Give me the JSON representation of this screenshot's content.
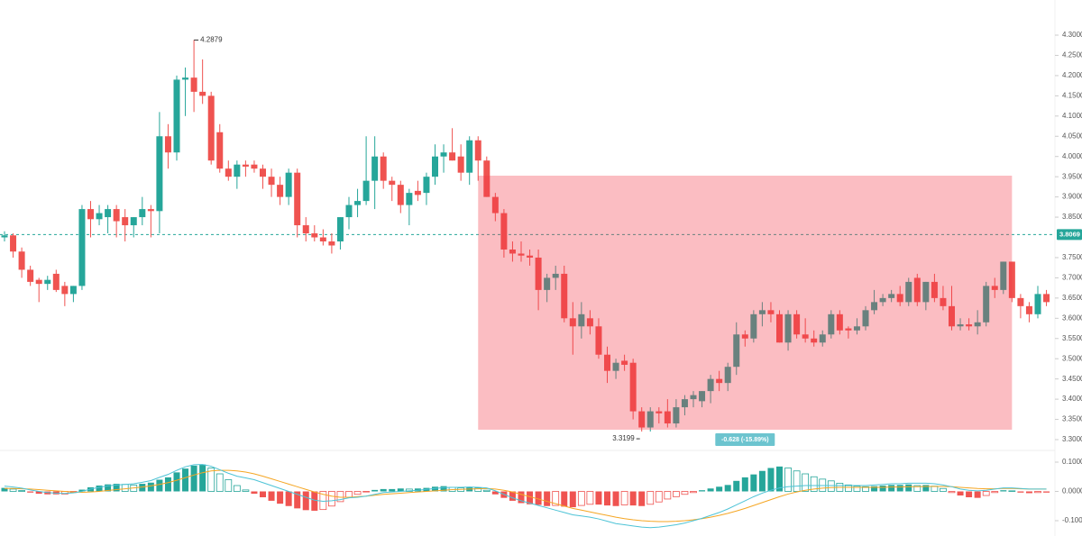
{
  "chart_data": [
    {
      "type": "candlestick",
      "up_color": "#26a69a",
      "down_color": "#ef5350",
      "ylim": [
        3.2733,
        4.3869
      ],
      "yticks": [
        {
          "value": 4.3,
          "label": "4.3000"
        },
        {
          "value": 4.25,
          "label": "4.2500"
        },
        {
          "value": 4.2,
          "label": "4.2000"
        },
        {
          "value": 4.15,
          "label": "4.1500"
        },
        {
          "value": 4.1,
          "label": "4.1000"
        },
        {
          "value": 4.05,
          "label": "4.0500"
        },
        {
          "value": 4.0,
          "label": "4.0000"
        },
        {
          "value": 3.95,
          "label": "3.9500"
        },
        {
          "value": 3.9,
          "label": "3.9000"
        },
        {
          "value": 3.85,
          "label": "3.8500"
        },
        {
          "value": 3.75,
          "label": "3.7500"
        },
        {
          "value": 3.7,
          "label": "3.7000"
        },
        {
          "value": 3.65,
          "label": "3.6500"
        },
        {
          "value": 3.6,
          "label": "3.6000"
        },
        {
          "value": 3.55,
          "label": "3.5500"
        },
        {
          "value": 3.5,
          "label": "3.5000"
        },
        {
          "value": 3.45,
          "label": "3.4500"
        },
        {
          "value": 3.4,
          "label": "3.4000"
        },
        {
          "value": 3.35,
          "label": "3.3500"
        },
        {
          "value": 3.3,
          "label": "3.3000"
        }
      ],
      "price_line": 3.8069,
      "high_label_index": 22,
      "low_label_index": 74,
      "measure": {
        "label": "-0.628 (-15.89%)",
        "top": 3.9526,
        "bottom": 3.3245,
        "start": 55,
        "end": 117,
        "color": "#f23645"
      },
      "candles": [
        [
          3.8,
          3.815,
          3.79,
          3.805
        ],
        [
          3.805,
          3.81,
          3.75,
          3.765
        ],
        [
          3.765,
          3.775,
          3.7,
          3.72
        ],
        [
          3.72,
          3.73,
          3.68,
          3.69
        ],
        [
          3.695,
          3.7,
          3.64,
          3.685
        ],
        [
          3.685,
          3.705,
          3.67,
          3.695
        ],
        [
          3.71,
          3.72,
          3.665,
          3.67
        ],
        [
          3.68,
          3.69,
          3.63,
          3.66
        ],
        [
          3.66,
          3.68,
          3.64,
          3.68
        ],
        [
          3.68,
          3.88,
          3.67,
          3.87
        ],
        [
          3.87,
          3.89,
          3.8,
          3.845
        ],
        [
          3.845,
          3.88,
          3.83,
          3.86
        ],
        [
          3.85,
          3.88,
          3.81,
          3.87
        ],
        [
          3.87,
          3.88,
          3.8,
          3.84
        ],
        [
          3.85,
          3.87,
          3.79,
          3.83
        ],
        [
          3.83,
          3.85,
          3.8,
          3.85
        ],
        [
          3.85,
          3.9,
          3.83,
          3.87
        ],
        [
          3.87,
          3.88,
          3.8,
          3.865
        ],
        [
          3.865,
          4.11,
          3.81,
          4.05
        ],
        [
          4.05,
          4.08,
          3.97,
          4.01
        ],
        [
          4.01,
          4.2,
          3.99,
          4.19
        ],
        [
          4.19,
          4.22,
          4.1,
          4.195
        ],
        [
          4.195,
          4.2879,
          4.11,
          4.16
        ],
        [
          4.16,
          4.24,
          4.13,
          4.15
        ],
        [
          4.15,
          4.16,
          3.98,
          3.99
        ],
        [
          4.06,
          4.08,
          3.96,
          3.97
        ],
        [
          3.97,
          3.99,
          3.94,
          3.95
        ],
        [
          3.95,
          3.99,
          3.92,
          3.98
        ],
        [
          3.98,
          3.99,
          3.95,
          3.975
        ],
        [
          3.98,
          3.99,
          3.96,
          3.97
        ],
        [
          3.97,
          3.98,
          3.92,
          3.95
        ],
        [
          3.95,
          3.97,
          3.9,
          3.93
        ],
        [
          3.93,
          3.95,
          3.88,
          3.9
        ],
        [
          3.9,
          3.97,
          3.88,
          3.96
        ],
        [
          3.96,
          3.97,
          3.8,
          3.83
        ],
        [
          3.83,
          3.85,
          3.79,
          3.81
        ],
        [
          3.81,
          3.83,
          3.79,
          3.8
        ],
        [
          3.8,
          3.82,
          3.78,
          3.79
        ],
        [
          3.79,
          3.81,
          3.76,
          3.78
        ],
        [
          3.79,
          3.85,
          3.77,
          3.85
        ],
        [
          3.85,
          3.9,
          3.82,
          3.88
        ],
        [
          3.88,
          3.92,
          3.85,
          3.89
        ],
        [
          3.89,
          4.05,
          3.88,
          3.94
        ],
        [
          3.94,
          4.05,
          3.87,
          4.0
        ],
        [
          4.0,
          4.01,
          3.92,
          3.94
        ],
        [
          3.94,
          3.95,
          3.89,
          3.93
        ],
        [
          3.93,
          3.94,
          3.86,
          3.88
        ],
        [
          3.88,
          3.92,
          3.83,
          3.91
        ],
        [
          3.915,
          3.94,
          3.89,
          3.905
        ],
        [
          3.91,
          3.96,
          3.88,
          3.95
        ],
        [
          3.95,
          4.03,
          3.93,
          4.0
        ],
        [
          4.0,
          4.03,
          3.96,
          4.01
        ],
        [
          4.01,
          4.07,
          3.99,
          3.99
        ],
        [
          4.0,
          4.03,
          3.94,
          3.96
        ],
        [
          3.96,
          4.05,
          3.93,
          4.04
        ],
        [
          4.04,
          4.05,
          3.94,
          3.99
        ],
        [
          3.99,
          4.0,
          3.9,
          3.9
        ],
        [
          3.9,
          3.91,
          3.84,
          3.86
        ],
        [
          3.86,
          3.87,
          3.75,
          3.77
        ],
        [
          3.77,
          3.79,
          3.74,
          3.76
        ],
        [
          3.76,
          3.79,
          3.74,
          3.755
        ],
        [
          3.755,
          3.77,
          3.73,
          3.75
        ],
        [
          3.75,
          3.77,
          3.62,
          3.67
        ],
        [
          3.67,
          3.71,
          3.64,
          3.7
        ],
        [
          3.7,
          3.73,
          3.67,
          3.71
        ],
        [
          3.71,
          3.73,
          3.59,
          3.6
        ],
        [
          3.6,
          3.64,
          3.51,
          3.58
        ],
        [
          3.58,
          3.64,
          3.55,
          3.61
        ],
        [
          3.6,
          3.62,
          3.56,
          3.58
        ],
        [
          3.58,
          3.6,
          3.5,
          3.51
        ],
        [
          3.51,
          3.53,
          3.44,
          3.47
        ],
        [
          3.47,
          3.5,
          3.45,
          3.49
        ],
        [
          3.495,
          3.51,
          3.47,
          3.485
        ],
        [
          3.49,
          3.5,
          3.35,
          3.37
        ],
        [
          3.37,
          3.38,
          3.3199,
          3.33
        ],
        [
          3.33,
          3.38,
          3.32,
          3.37
        ],
        [
          3.37,
          3.38,
          3.34,
          3.365
        ],
        [
          3.37,
          3.4,
          3.33,
          3.34
        ],
        [
          3.34,
          3.4,
          3.33,
          3.38
        ],
        [
          3.38,
          3.41,
          3.36,
          3.4
        ],
        [
          3.4,
          3.42,
          3.38,
          3.41
        ],
        [
          3.395,
          3.42,
          3.38,
          3.42
        ],
        [
          3.42,
          3.46,
          3.39,
          3.45
        ],
        [
          3.45,
          3.47,
          3.42,
          3.44
        ],
        [
          3.44,
          3.49,
          3.42,
          3.48
        ],
        [
          3.48,
          3.59,
          3.46,
          3.56
        ],
        [
          3.56,
          3.57,
          3.53,
          3.55
        ],
        [
          3.55,
          3.62,
          3.54,
          3.61
        ],
        [
          3.61,
          3.64,
          3.58,
          3.62
        ],
        [
          3.62,
          3.64,
          3.59,
          3.61
        ],
        [
          3.61,
          3.62,
          3.54,
          3.54
        ],
        [
          3.54,
          3.62,
          3.52,
          3.61
        ],
        [
          3.61,
          3.62,
          3.55,
          3.56
        ],
        [
          3.56,
          3.6,
          3.54,
          3.55
        ],
        [
          3.55,
          3.57,
          3.53,
          3.54
        ],
        [
          3.54,
          3.57,
          3.53,
          3.56
        ],
        [
          3.56,
          3.62,
          3.55,
          3.61
        ],
        [
          3.61,
          3.62,
          3.56,
          3.57
        ],
        [
          3.575,
          3.58,
          3.55,
          3.57
        ],
        [
          3.57,
          3.6,
          3.56,
          3.58
        ],
        [
          3.58,
          3.63,
          3.57,
          3.62
        ],
        [
          3.62,
          3.67,
          3.61,
          3.64
        ],
        [
          3.64,
          3.66,
          3.63,
          3.65
        ],
        [
          3.65,
          3.67,
          3.64,
          3.66
        ],
        [
          3.66,
          3.68,
          3.63,
          3.64
        ],
        [
          3.64,
          3.7,
          3.63,
          3.69
        ],
        [
          3.7,
          3.71,
          3.63,
          3.64
        ],
        [
          3.64,
          3.69,
          3.62,
          3.69
        ],
        [
          3.69,
          3.71,
          3.64,
          3.65
        ],
        [
          3.65,
          3.68,
          3.62,
          3.63
        ],
        [
          3.63,
          3.68,
          3.57,
          3.58
        ],
        [
          3.58,
          3.6,
          3.57,
          3.585
        ],
        [
          3.585,
          3.6,
          3.57,
          3.58
        ],
        [
          3.58,
          3.62,
          3.56,
          3.59
        ],
        [
          3.59,
          3.69,
          3.58,
          3.68
        ],
        [
          3.68,
          3.7,
          3.65,
          3.67
        ],
        [
          3.67,
          3.74,
          3.66,
          3.74
        ],
        [
          3.74,
          3.74,
          3.64,
          3.65
        ],
        [
          3.65,
          3.66,
          3.6,
          3.63
        ],
        [
          3.63,
          3.64,
          3.59,
          3.61
        ],
        [
          3.61,
          3.68,
          3.6,
          3.66
        ],
        [
          3.66,
          3.67,
          3.63,
          3.64
        ]
      ]
    },
    {
      "type": "macd",
      "ylim": [
        -0.1523,
        0.14
      ],
      "yticks": [
        {
          "value": 0.1,
          "label": "0.1000"
        },
        {
          "value": 0,
          "label": "0.0000"
        },
        {
          "value": -0.1,
          "label": "-0.1000"
        }
      ],
      "up_color": "#26a69a",
      "up_fade_color": "#b2dfdb",
      "down_color": "#ef5350",
      "down_fade_color": "#ffcdd2",
      "histogram": [
        0.012,
        0.008,
        0.003,
        -0.004,
        -0.008,
        -0.01,
        -0.01,
        -0.009,
        -0.004,
        0.006,
        0.014,
        0.02,
        0.024,
        0.026,
        0.024,
        0.022,
        0.026,
        0.03,
        0.04,
        0.048,
        0.065,
        0.078,
        0.088,
        0.092,
        0.08,
        0.06,
        0.04,
        0.02,
        0.005,
        -0.008,
        -0.02,
        -0.032,
        -0.042,
        -0.05,
        -0.058,
        -0.064,
        -0.066,
        -0.062,
        -0.05,
        -0.035,
        -0.02,
        -0.01,
        -0.002,
        0.005,
        0.008,
        0.008,
        0.01,
        0.008,
        0.01,
        0.012,
        0.016,
        0.018,
        0.014,
        0.012,
        0.014,
        0.012,
        0.004,
        -0.01,
        -0.022,
        -0.032,
        -0.04,
        -0.044,
        -0.046,
        -0.05,
        -0.048,
        -0.052,
        -0.054,
        -0.048,
        -0.044,
        -0.045,
        -0.048,
        -0.05,
        -0.046,
        -0.048,
        -0.05,
        -0.044,
        -0.036,
        -0.026,
        -0.018,
        -0.01,
        -0.004,
        0.004,
        0.01,
        0.016,
        0.022,
        0.036,
        0.048,
        0.058,
        0.07,
        0.08,
        0.085,
        0.08,
        0.07,
        0.06,
        0.05,
        0.042,
        0.036,
        0.028,
        0.022,
        0.018,
        0.016,
        0.018,
        0.02,
        0.022,
        0.022,
        0.024,
        0.02,
        0.022,
        0.018,
        0.01,
        -0.004,
        -0.014,
        -0.02,
        -0.022,
        -0.014,
        -0.004,
        0.004,
        0.002,
        -0.004,
        -0.006,
        -0.004,
        -0.004
      ],
      "macd": {
        "color": "#4dc3d6",
        "values": [
          0.018,
          0.015,
          0.011,
          0.005,
          0.0,
          -0.004,
          -0.006,
          -0.007,
          -0.005,
          0.0,
          0.008,
          0.014,
          0.019,
          0.022,
          0.024,
          0.026,
          0.031,
          0.037,
          0.048,
          0.058,
          0.072,
          0.084,
          0.091,
          0.092,
          0.086,
          0.074,
          0.062,
          0.052,
          0.046,
          0.04,
          0.03,
          0.02,
          0.01,
          0.0,
          -0.01,
          -0.02,
          -0.03,
          -0.034,
          -0.032,
          -0.028,
          -0.022,
          -0.02,
          -0.016,
          -0.01,
          -0.004,
          -0.002,
          0.0,
          0.002,
          0.004,
          0.007,
          0.01,
          0.013,
          0.014,
          0.014,
          0.015,
          0.014,
          0.012,
          0.002,
          -0.01,
          -0.022,
          -0.032,
          -0.04,
          -0.048,
          -0.056,
          -0.064,
          -0.072,
          -0.08,
          -0.084,
          -0.088,
          -0.094,
          -0.102,
          -0.11,
          -0.114,
          -0.118,
          -0.122,
          -0.124,
          -0.122,
          -0.118,
          -0.114,
          -0.108,
          -0.1,
          -0.092,
          -0.082,
          -0.072,
          -0.06,
          -0.046,
          -0.032,
          -0.018,
          -0.006,
          0.004,
          0.012,
          0.016,
          0.018,
          0.02,
          0.02,
          0.02,
          0.02,
          0.02,
          0.02,
          0.02,
          0.02,
          0.022,
          0.024,
          0.026,
          0.026,
          0.028,
          0.028,
          0.028,
          0.026,
          0.022,
          0.016,
          0.008,
          0.004,
          0.002,
          0.004,
          0.008,
          0.012,
          0.012,
          0.01,
          0.008,
          0.008,
          0.008
        ]
      },
      "signal": {
        "color": "#f5a623",
        "values": [
          0.01,
          0.01,
          0.009,
          0.008,
          0.006,
          0.004,
          0.002,
          0.0,
          -0.002,
          -0.003,
          -0.002,
          0.0,
          0.003,
          0.006,
          0.009,
          0.012,
          0.015,
          0.019,
          0.024,
          0.03,
          0.038,
          0.047,
          0.056,
          0.064,
          0.07,
          0.072,
          0.072,
          0.07,
          0.066,
          0.06,
          0.052,
          0.043,
          0.034,
          0.025,
          0.016,
          0.007,
          -0.002,
          -0.01,
          -0.016,
          -0.02,
          -0.02,
          -0.018,
          -0.016,
          -0.013,
          -0.01,
          -0.008,
          -0.006,
          -0.004,
          -0.002,
          0.0,
          0.002,
          0.004,
          0.006,
          0.007,
          0.008,
          0.009,
          0.01,
          0.008,
          0.004,
          -0.002,
          -0.01,
          -0.018,
          -0.026,
          -0.034,
          -0.042,
          -0.05,
          -0.058,
          -0.064,
          -0.07,
          -0.076,
          -0.082,
          -0.088,
          -0.093,
          -0.097,
          -0.1,
          -0.102,
          -0.103,
          -0.103,
          -0.102,
          -0.1,
          -0.097,
          -0.093,
          -0.088,
          -0.082,
          -0.075,
          -0.067,
          -0.058,
          -0.048,
          -0.038,
          -0.028,
          -0.018,
          -0.009,
          -0.002,
          0.004,
          0.008,
          0.011,
          0.013,
          0.014,
          0.014,
          0.014,
          0.014,
          0.014,
          0.014,
          0.015,
          0.015,
          0.016,
          0.016,
          0.017,
          0.017,
          0.017,
          0.016,
          0.014,
          0.012,
          0.01,
          0.009,
          0.009,
          0.01,
          0.01,
          0.009,
          0.008,
          0.008,
          0.008
        ]
      }
    }
  ]
}
